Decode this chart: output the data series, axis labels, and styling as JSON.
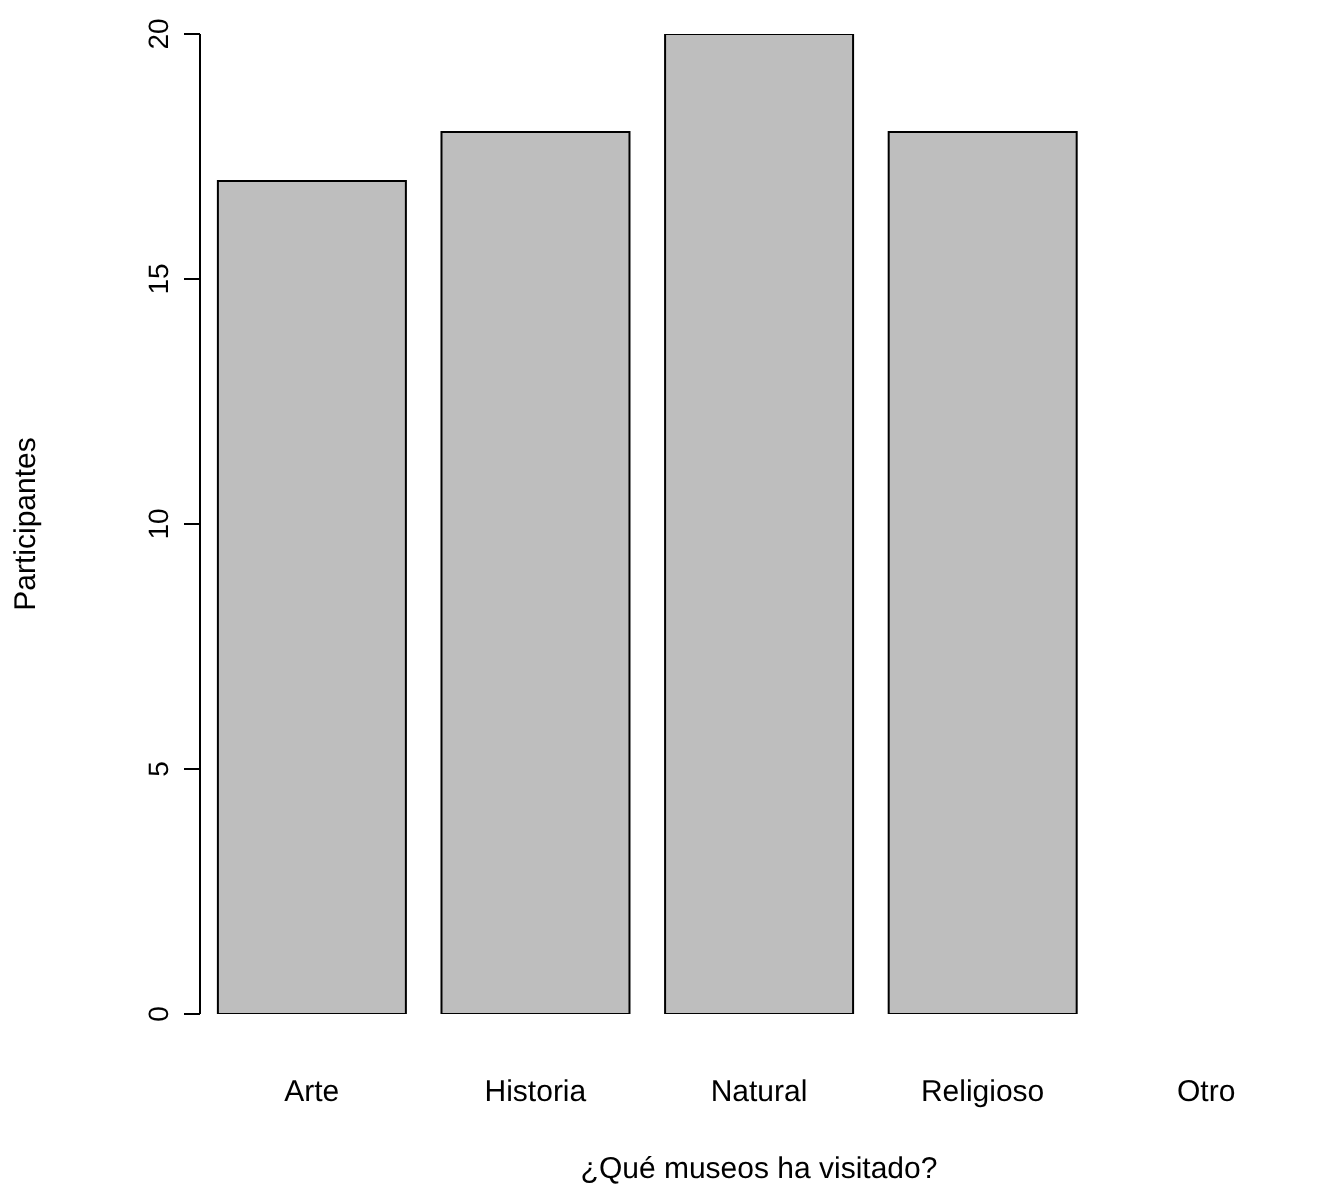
{
  "chart_data": {
    "type": "bar",
    "xlabel": "¿Qué museos ha visitado?",
    "ylabel": "Participantes",
    "categories": [
      "Arte",
      "Historia",
      "Natural",
      "Religioso",
      "Otro"
    ],
    "values": [
      17,
      18,
      20,
      18,
      0
    ],
    "color": "#bebebe",
    "ylim": [
      0,
      20
    ],
    "yticks": [
      0,
      5,
      10,
      15,
      20
    ],
    "grid": false
  }
}
